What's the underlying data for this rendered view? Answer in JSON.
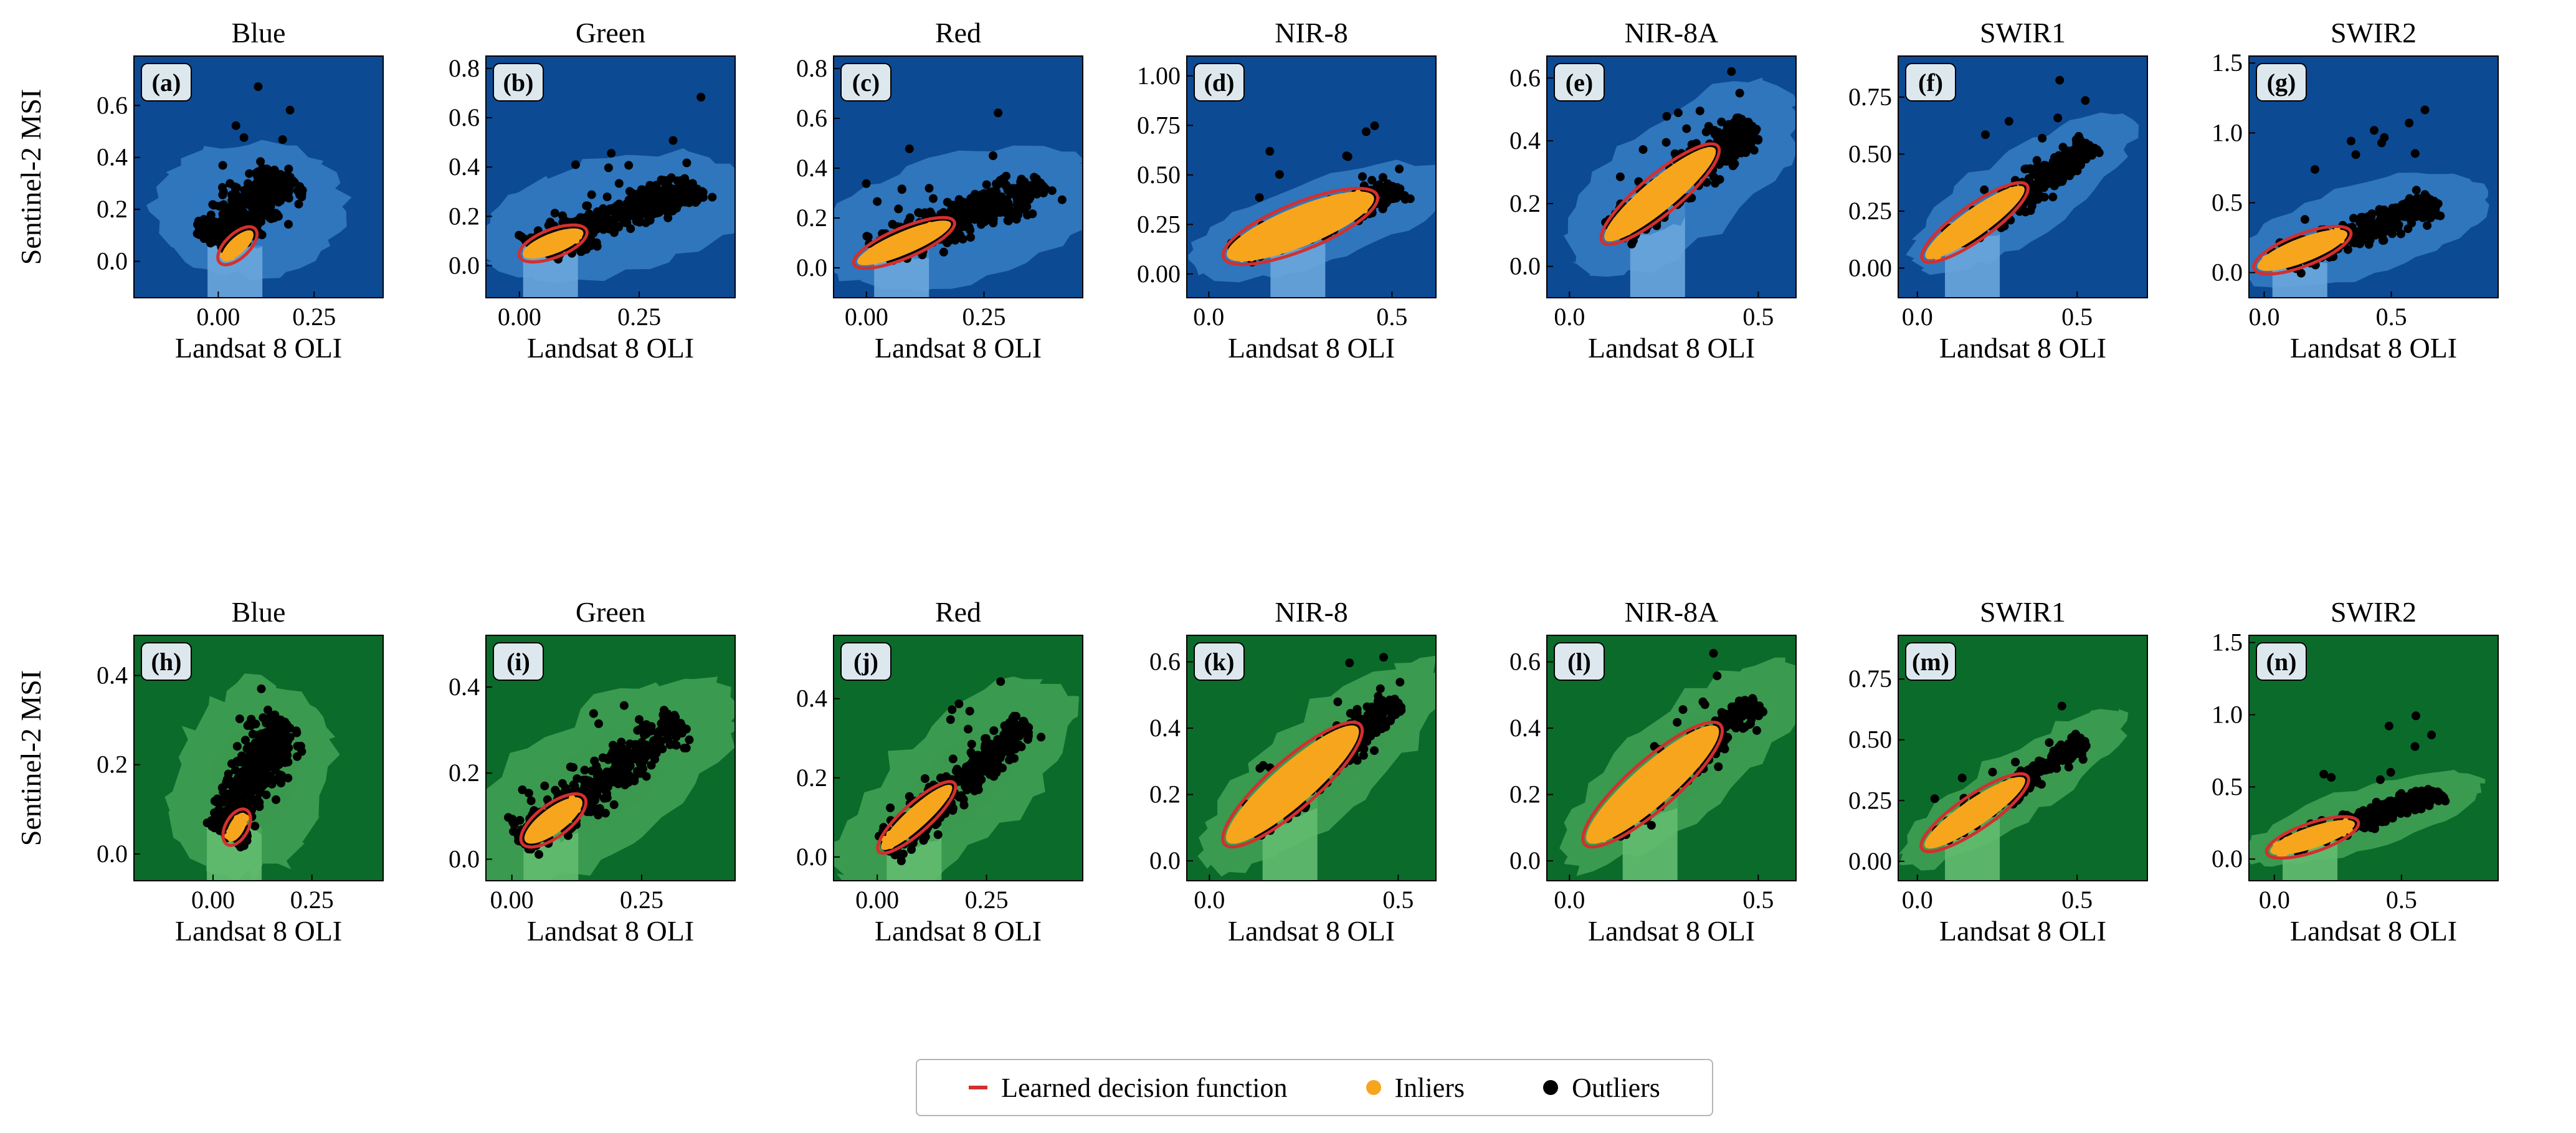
{
  "colors": {
    "blue_bg": "#0d4a94",
    "blue_mid": "#2f76bd",
    "blue_light": "#6aa7dc",
    "green_bg": "#0b6b2b",
    "green_mid": "#3a9a4f",
    "green_light": "#63bd70",
    "decision": "#d32f2f",
    "inlier": "#f6a51c",
    "outlier": "#000000"
  },
  "legend": {
    "decision_label": "Learned decision function",
    "inliers_label": "Inliers",
    "outliers_label": "Outliers"
  },
  "chart_data": [
    {
      "type": "scatter",
      "row": "top",
      "panel": "(a)",
      "title": "Blue",
      "xlabel": "Landsat 8 OLI",
      "ylabel": "Sentinel-2 MSI",
      "xlim": [
        -0.22,
        0.43
      ],
      "ylim": [
        -0.14,
        0.79
      ],
      "xticks": [
        0,
        0.25
      ],
      "xticklabels": [
        "0.00",
        "0.25"
      ],
      "yticks": [
        0,
        0.2,
        0.4,
        0.6
      ],
      "yticklabels": [
        "0.0",
        "0.2",
        "0.4",
        "0.6"
      ],
      "cloud": {
        "slope": 1.4,
        "cx": 0.08,
        "cy": 0.2,
        "spread": 0.12,
        "length": 0.33
      },
      "decision": {
        "center": [
          0.05,
          0.06
        ],
        "half_length": 0.04,
        "half_width": 0.018
      }
    },
    {
      "type": "scatter",
      "row": "top",
      "panel": "(b)",
      "title": "Green",
      "xlabel": "Landsat 8 OLI",
      "ylabel": "",
      "xlim": [
        -0.07,
        0.45
      ],
      "ylim": [
        -0.13,
        0.85
      ],
      "xticks": [
        0,
        0.25
      ],
      "xticklabels": [
        "0.00",
        "0.25"
      ],
      "yticks": [
        0,
        0.2,
        0.4,
        0.6,
        0.8
      ],
      "yticklabels": [
        "0.0",
        "0.2",
        "0.4",
        "0.6",
        "0.8"
      ],
      "cloud": {
        "slope": 0.75,
        "cx": 0.2,
        "cy": 0.2,
        "spread": 0.1,
        "length": 0.42
      },
      "decision": {
        "center": [
          0.07,
          0.09
        ],
        "half_length": 0.05,
        "half_width": 0.018
      }
    },
    {
      "type": "scatter",
      "row": "top",
      "panel": "(c)",
      "title": "Red",
      "xlabel": "Landsat 8 OLI",
      "ylabel": "",
      "xlim": [
        -0.07,
        0.46
      ],
      "ylim": [
        -0.12,
        0.85
      ],
      "xticks": [
        0,
        0.25
      ],
      "xticklabels": [
        "0.00",
        "0.25"
      ],
      "yticks": [
        0,
        0.2,
        0.4,
        0.6,
        0.8
      ],
      "yticklabels": [
        "0.0",
        "0.2",
        "0.4",
        "0.6",
        "0.8"
      ],
      "cloud": {
        "slope": 0.8,
        "cx": 0.2,
        "cy": 0.2,
        "spread": 0.11,
        "length": 0.45
      },
      "decision": {
        "center": [
          0.08,
          0.1
        ],
        "half_length": 0.08,
        "half_width": 0.02
      }
    },
    {
      "type": "scatter",
      "row": "top",
      "panel": "(d)",
      "title": "NIR-8",
      "xlabel": "Landsat 8 OLI",
      "ylabel": "",
      "xlim": [
        -0.06,
        0.62
      ],
      "ylim": [
        -0.12,
        1.1
      ],
      "xticks": [
        0,
        0.5
      ],
      "xticklabels": [
        "0.0",
        "0.5"
      ],
      "yticks": [
        0,
        0.25,
        0.5,
        0.75,
        1.0
      ],
      "yticklabels": [
        "0.00",
        "0.25",
        "0.50",
        "0.75",
        "1.00"
      ],
      "cloud": {
        "slope": 0.75,
        "cx": 0.3,
        "cy": 0.27,
        "spread": 0.09,
        "length": 0.55
      },
      "decision": {
        "center": [
          0.25,
          0.24
        ],
        "half_length": 0.16,
        "half_width": 0.045
      }
    },
    {
      "type": "scatter",
      "row": "top",
      "panel": "(e)",
      "title": "NIR-8A",
      "xlabel": "Landsat 8 OLI",
      "ylabel": "",
      "xlim": [
        -0.06,
        0.6
      ],
      "ylim": [
        -0.1,
        0.67
      ],
      "xticks": [
        0,
        0.5
      ],
      "xticklabels": [
        "0.0",
        "0.5"
      ],
      "yticks": [
        0,
        0.2,
        0.4,
        0.6
      ],
      "yticklabels": [
        "0.0",
        "0.2",
        "0.4",
        "0.6"
      ],
      "cloud": {
        "slope": 1.0,
        "cx": 0.3,
        "cy": 0.28,
        "spread": 0.09,
        "length": 0.5
      },
      "decision": {
        "center": [
          0.24,
          0.23
        ],
        "half_length": 0.14,
        "half_width": 0.035
      }
    },
    {
      "type": "scatter",
      "row": "top",
      "panel": "(f)",
      "title": "SWIR1",
      "xlabel": "Landsat 8 OLI",
      "ylabel": "",
      "xlim": [
        -0.06,
        0.72
      ],
      "ylim": [
        -0.13,
        0.93
      ],
      "xticks": [
        0,
        0.5
      ],
      "xticklabels": [
        "0.0",
        "0.5"
      ],
      "yticks": [
        0,
        0.25,
        0.5,
        0.75
      ],
      "yticklabels": [
        "0.00",
        "0.25",
        "0.50",
        "0.75"
      ],
      "cloud": {
        "slope": 1.0,
        "cx": 0.33,
        "cy": 0.33,
        "spread": 0.08,
        "length": 0.6
      },
      "decision": {
        "center": [
          0.18,
          0.2
        ],
        "half_length": 0.14,
        "half_width": 0.035
      }
    },
    {
      "type": "scatter",
      "row": "top",
      "panel": "(g)",
      "title": "SWIR2",
      "xlabel": "Landsat 8 OLI",
      "ylabel": "",
      "xlim": [
        -0.06,
        0.92
      ],
      "ylim": [
        -0.18,
        1.55
      ],
      "xticks": [
        0,
        0.5
      ],
      "xticklabels": [
        "0.0",
        "0.5"
      ],
      "yticks": [
        0,
        0.5,
        1.0,
        1.5
      ],
      "yticklabels": [
        "0.0",
        "0.5",
        "1.0",
        "1.5"
      ],
      "cloud": {
        "slope": 0.7,
        "cx": 0.38,
        "cy": 0.3,
        "spread": 0.14,
        "length": 0.75
      },
      "decision": {
        "center": [
          0.15,
          0.16
        ],
        "half_length": 0.14,
        "half_width": 0.04
      }
    },
    {
      "type": "scatter",
      "row": "bottom",
      "panel": "(h)",
      "title": "Blue",
      "xlabel": "Landsat 8 OLI",
      "ylabel": "Sentinel-2 MSI",
      "xlim": [
        -0.2,
        0.43
      ],
      "ylim": [
        -0.06,
        0.49
      ],
      "xticks": [
        0,
        0.25
      ],
      "xticklabels": [
        "0.00",
        "0.25"
      ],
      "yticks": [
        0,
        0.2,
        0.4
      ],
      "yticklabels": [
        "0.0",
        "0.2",
        "0.4"
      ],
      "cloud": {
        "slope": 1.6,
        "cx": 0.1,
        "cy": 0.17,
        "spread": 0.09,
        "length": 0.3
      },
      "decision": {
        "center": [
          0.06,
          0.06
        ],
        "half_length": 0.03,
        "half_width": 0.016
      }
    },
    {
      "type": "scatter",
      "row": "bottom",
      "panel": "(i)",
      "title": "Green",
      "xlabel": "Landsat 8 OLI",
      "ylabel": "",
      "xlim": [
        -0.05,
        0.43
      ],
      "ylim": [
        -0.05,
        0.52
      ],
      "xticks": [
        0,
        0.25
      ],
      "xticklabels": [
        "0.00",
        "0.25"
      ],
      "yticks": [
        0,
        0.2,
        0.4
      ],
      "yticklabels": [
        "0.0",
        "0.2",
        "0.4"
      ],
      "cloud": {
        "slope": 0.9,
        "cx": 0.17,
        "cy": 0.18,
        "spread": 0.07,
        "length": 0.42
      },
      "decision": {
        "center": [
          0.08,
          0.09
        ],
        "half_length": 0.05,
        "half_width": 0.02
      }
    },
    {
      "type": "scatter",
      "row": "bottom",
      "panel": "(j)",
      "title": "Red",
      "xlabel": "Landsat 8 OLI",
      "ylabel": "",
      "xlim": [
        -0.1,
        0.47
      ],
      "ylim": [
        -0.06,
        0.56
      ],
      "xticks": [
        0,
        0.25
      ],
      "xticklabels": [
        "0.00",
        "0.25"
      ],
      "yticks": [
        0,
        0.2,
        0.4
      ],
      "yticklabels": [
        "0.0",
        "0.2",
        "0.4"
      ],
      "cloud": {
        "slope": 1.0,
        "cx": 0.18,
        "cy": 0.18,
        "spread": 0.07,
        "length": 0.45
      },
      "decision": {
        "center": [
          0.09,
          0.1
        ],
        "half_length": 0.08,
        "half_width": 0.02
      }
    },
    {
      "type": "scatter",
      "row": "bottom",
      "panel": "(k)",
      "title": "NIR-8",
      "xlabel": "Landsat 8 OLI",
      "ylabel": "",
      "xlim": [
        -0.06,
        0.6
      ],
      "ylim": [
        -0.06,
        0.68
      ],
      "xticks": [
        0,
        0.5
      ],
      "xticklabels": [
        "0.0",
        "0.5"
      ],
      "yticks": [
        0,
        0.2,
        0.4,
        0.6
      ],
      "yticklabels": [
        "0.0",
        "0.2",
        "0.4",
        "0.6"
      ],
      "cloud": {
        "slope": 1.0,
        "cx": 0.3,
        "cy": 0.29,
        "spread": 0.07,
        "length": 0.55
      },
      "decision": {
        "center": [
          0.22,
          0.23
        ],
        "half_length": 0.17,
        "half_width": 0.045
      }
    },
    {
      "type": "scatter",
      "row": "bottom",
      "panel": "(l)",
      "title": "NIR-8A",
      "xlabel": "Landsat 8 OLI",
      "ylabel": "",
      "xlim": [
        -0.06,
        0.6
      ],
      "ylim": [
        -0.06,
        0.68
      ],
      "xticks": [
        0,
        0.5
      ],
      "xticklabels": [
        "0.0",
        "0.5"
      ],
      "yticks": [
        0,
        0.2,
        0.4,
        0.6
      ],
      "yticklabels": [
        "0.0",
        "0.2",
        "0.4",
        "0.6"
      ],
      "cloud": {
        "slope": 1.0,
        "cx": 0.3,
        "cy": 0.29,
        "spread": 0.07,
        "length": 0.55
      },
      "decision": {
        "center": [
          0.22,
          0.23
        ],
        "half_length": 0.17,
        "half_width": 0.045
      }
    },
    {
      "type": "scatter",
      "row": "bottom",
      "panel": "(m)",
      "title": "SWIR1",
      "xlabel": "Landsat 8 OLI",
      "ylabel": "",
      "xlim": [
        -0.06,
        0.72
      ],
      "ylim": [
        -0.08,
        0.93
      ],
      "xticks": [
        0,
        0.5
      ],
      "xticklabels": [
        "0.0",
        "0.5"
      ],
      "yticks": [
        0,
        0.25,
        0.5,
        0.75
      ],
      "yticklabels": [
        "0.00",
        "0.25",
        "0.50",
        "0.75"
      ],
      "cloud": {
        "slope": 0.9,
        "cx": 0.3,
        "cy": 0.3,
        "spread": 0.06,
        "length": 0.6
      },
      "decision": {
        "center": [
          0.18,
          0.2
        ],
        "half_length": 0.14,
        "half_width": 0.035
      }
    },
    {
      "type": "scatter",
      "row": "bottom",
      "panel": "(n)",
      "title": "SWIR2",
      "xlabel": "Landsat 8 OLI",
      "ylabel": "",
      "xlim": [
        -0.1,
        0.88
      ],
      "ylim": [
        -0.15,
        1.55
      ],
      "xticks": [
        0,
        0.5
      ],
      "xticklabels": [
        "0.0",
        "0.5"
      ],
      "yticks": [
        0,
        0.5,
        1.0,
        1.5
      ],
      "yticklabels": [
        "0.0",
        "0.5",
        "1.0",
        "1.5"
      ],
      "cloud": {
        "slope": 0.6,
        "cx": 0.35,
        "cy": 0.28,
        "spread": 0.09,
        "length": 0.7
      },
      "decision": {
        "center": [
          0.15,
          0.15
        ],
        "half_length": 0.13,
        "half_width": 0.035
      }
    }
  ]
}
